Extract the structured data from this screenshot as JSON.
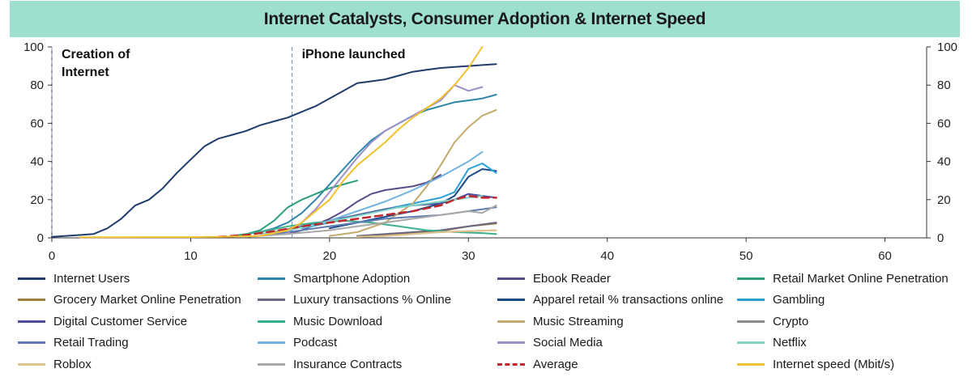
{
  "title": "Internet Catalysts, Consumer Adoption & Internet Speed",
  "chart_data": {
    "type": "line",
    "title": "Internet Catalysts, Consumer Adoption & Internet Speed",
    "xlabel": "",
    "ylabel": "",
    "xlim": [
      0,
      63
    ],
    "ylim": [
      0,
      100
    ],
    "x_ticks": [
      "0",
      "10",
      "20",
      "30",
      "40",
      "50",
      "60"
    ],
    "y_ticks_left": [
      "0",
      "20",
      "40",
      "60",
      "80",
      "100"
    ],
    "y_ticks_right": [
      "0",
      "20",
      "40",
      "60",
      "80",
      "100"
    ],
    "grid": false,
    "legend_position": "bottom",
    "annotations": [
      {
        "text": [
          "Creation of",
          "Internet"
        ],
        "x": 0
      },
      {
        "text": [
          "iPhone launched"
        ],
        "x": 17.3
      }
    ],
    "series": [
      {
        "name": "Internet Users",
        "color": "#1f3c6b",
        "dash": false,
        "points": [
          [
            0,
            0.5
          ],
          [
            1,
            1
          ],
          [
            2,
            1.5
          ],
          [
            3,
            2
          ],
          [
            4,
            5
          ],
          [
            5,
            10
          ],
          [
            6,
            17
          ],
          [
            7,
            20
          ],
          [
            8,
            26
          ],
          [
            9,
            34
          ],
          [
            10,
            41
          ],
          [
            11,
            48
          ],
          [
            12,
            52
          ],
          [
            13,
            54
          ],
          [
            14,
            56
          ],
          [
            15,
            59
          ],
          [
            16,
            61
          ],
          [
            17,
            63
          ],
          [
            18,
            66
          ],
          [
            19,
            69
          ],
          [
            20,
            73
          ],
          [
            21,
            77
          ],
          [
            22,
            81
          ],
          [
            23,
            82
          ],
          [
            24,
            83
          ],
          [
            25,
            85
          ],
          [
            26,
            87
          ],
          [
            27,
            88
          ],
          [
            28,
            89
          ],
          [
            29,
            89.5
          ],
          [
            30,
            90
          ],
          [
            31,
            90.5
          ],
          [
            32,
            91
          ]
        ]
      },
      {
        "name": "Smartphone Adoption",
        "color": "#2e86ab",
        "dash": false,
        "points": [
          [
            15,
            3
          ],
          [
            16,
            5
          ],
          [
            17,
            8
          ],
          [
            18,
            13
          ],
          [
            19,
            20
          ],
          [
            20,
            28
          ],
          [
            21,
            36
          ],
          [
            22,
            44
          ],
          [
            23,
            51
          ],
          [
            24,
            56
          ],
          [
            25,
            60
          ],
          [
            26,
            64
          ],
          [
            27,
            67
          ],
          [
            28,
            69
          ],
          [
            29,
            71
          ],
          [
            30,
            72
          ],
          [
            31,
            73
          ],
          [
            32,
            75
          ]
        ]
      },
      {
        "name": "Ebook Reader",
        "color": "#5b4a8a",
        "dash": false,
        "points": [
          [
            17,
            2
          ],
          [
            18,
            4
          ],
          [
            19,
            7
          ],
          [
            20,
            10
          ],
          [
            21,
            14
          ],
          [
            22,
            19
          ],
          [
            23,
            23
          ],
          [
            24,
            25
          ],
          [
            25,
            26
          ],
          [
            26,
            27
          ],
          [
            27,
            29
          ],
          [
            28,
            33
          ]
        ]
      },
      {
        "name": "Retail Market Online Penetration",
        "color": "#2a9d7c",
        "dash": false,
        "points": [
          [
            13,
            1
          ],
          [
            14,
            2
          ],
          [
            15,
            4
          ],
          [
            16,
            9
          ],
          [
            17,
            16
          ],
          [
            18,
            20
          ],
          [
            19,
            23
          ],
          [
            20,
            26
          ],
          [
            21,
            28
          ],
          [
            22,
            30
          ]
        ]
      },
      {
        "name": "Grocery Market Online Penetration",
        "color": "#a07c3c",
        "dash": false,
        "points": [
          [
            22,
            1
          ],
          [
            24,
            1.5
          ],
          [
            26,
            2.5
          ],
          [
            28,
            3.5
          ],
          [
            30,
            6
          ],
          [
            32,
            7.5
          ]
        ]
      },
      {
        "name": "Luxury transactions % Online",
        "color": "#6b6780",
        "dash": false,
        "points": [
          [
            22,
            1
          ],
          [
            24,
            2
          ],
          [
            26,
            3
          ],
          [
            28,
            4
          ],
          [
            30,
            6
          ],
          [
            32,
            8
          ]
        ]
      },
      {
        "name": "Apparel retail % transactions online",
        "color": "#1a4b8c",
        "dash": false,
        "points": [
          [
            20,
            5
          ],
          [
            22,
            8
          ],
          [
            24,
            11
          ],
          [
            26,
            14
          ],
          [
            28,
            18
          ],
          [
            29,
            22
          ],
          [
            30,
            32
          ],
          [
            31,
            36
          ],
          [
            32,
            35
          ]
        ]
      },
      {
        "name": "Gambling",
        "color": "#2b9fd8",
        "dash": false,
        "points": [
          [
            18,
            5
          ],
          [
            20,
            8
          ],
          [
            22,
            12
          ],
          [
            24,
            15
          ],
          [
            26,
            18
          ],
          [
            28,
            21
          ],
          [
            29,
            24
          ],
          [
            30,
            36
          ],
          [
            31,
            39
          ],
          [
            32,
            34
          ]
        ]
      },
      {
        "name": "Digital Customer Service",
        "color": "#4a4d99",
        "dash": false,
        "points": [
          [
            16,
            3
          ],
          [
            18,
            6
          ],
          [
            20,
            9
          ],
          [
            22,
            12
          ],
          [
            24,
            15
          ],
          [
            26,
            17
          ],
          [
            28,
            18
          ],
          [
            29,
            20
          ],
          [
            30,
            23
          ],
          [
            31,
            22
          ],
          [
            32,
            21
          ]
        ]
      },
      {
        "name": "Music Download",
        "color": "#3bb08f",
        "dash": false,
        "points": [
          [
            13,
            1
          ],
          [
            15,
            3
          ],
          [
            17,
            6
          ],
          [
            19,
            8
          ],
          [
            21,
            9
          ],
          [
            23,
            8
          ],
          [
            25,
            6
          ],
          [
            27,
            4
          ],
          [
            29,
            3
          ],
          [
            31,
            2.5
          ],
          [
            32,
            2
          ]
        ]
      },
      {
        "name": "Music Streaming",
        "color": "#c4aa6a",
        "dash": false,
        "points": [
          [
            20,
            1
          ],
          [
            22,
            3
          ],
          [
            24,
            8
          ],
          [
            26,
            18
          ],
          [
            27,
            27
          ],
          [
            28,
            38
          ],
          [
            29,
            50
          ],
          [
            30,
            58
          ],
          [
            31,
            64
          ],
          [
            32,
            67
          ]
        ]
      },
      {
        "name": "Crypto",
        "color": "#8a8a8a",
        "dash": false,
        "points": [
          [
            22,
            0.5
          ],
          [
            24,
            1
          ],
          [
            26,
            2
          ],
          [
            28,
            3
          ],
          [
            30,
            3.5
          ],
          [
            32,
            4
          ]
        ]
      },
      {
        "name": "Retail Trading",
        "color": "#5e7bb5",
        "dash": false,
        "points": [
          [
            16,
            2
          ],
          [
            18,
            4
          ],
          [
            20,
            6
          ],
          [
            22,
            8
          ],
          [
            24,
            10
          ],
          [
            26,
            11
          ],
          [
            28,
            12
          ],
          [
            30,
            14
          ],
          [
            32,
            16
          ]
        ]
      },
      {
        "name": "Podcast",
        "color": "#6fb3e0",
        "dash": false,
        "points": [
          [
            18,
            5
          ],
          [
            20,
            9
          ],
          [
            22,
            14
          ],
          [
            24,
            19
          ],
          [
            26,
            25
          ],
          [
            28,
            32
          ],
          [
            30,
            40
          ],
          [
            31,
            45
          ]
        ]
      },
      {
        "name": "Social Media",
        "color": "#9b91c9",
        "dash": false,
        "points": [
          [
            17,
            3
          ],
          [
            18,
            8
          ],
          [
            19,
            15
          ],
          [
            20,
            24
          ],
          [
            21,
            33
          ],
          [
            22,
            42
          ],
          [
            23,
            50
          ],
          [
            24,
            56
          ],
          [
            25,
            60
          ],
          [
            26,
            64
          ],
          [
            27,
            68
          ],
          [
            28,
            72
          ],
          [
            29,
            80
          ],
          [
            30,
            77
          ],
          [
            31,
            79
          ]
        ]
      },
      {
        "name": "Netflix",
        "color": "#7fd4c4",
        "dash": false,
        "points": [
          [
            15,
            2
          ],
          [
            17,
            4
          ],
          [
            19,
            7
          ],
          [
            21,
            10
          ],
          [
            23,
            13
          ],
          [
            25,
            16
          ],
          [
            27,
            18
          ],
          [
            29,
            20
          ],
          [
            31,
            22
          ]
        ]
      },
      {
        "name": "Roblox",
        "color": "#e0c48a",
        "dash": false,
        "points": [
          [
            22,
            0.5
          ],
          [
            24,
            1
          ],
          [
            26,
            2
          ],
          [
            28,
            3
          ],
          [
            30,
            3.5
          ],
          [
            32,
            4
          ]
        ]
      },
      {
        "name": "Insurance Contracts",
        "color": "#a8a8a8",
        "dash": false,
        "points": [
          [
            14,
            0.5
          ],
          [
            17,
            2
          ],
          [
            20,
            4
          ],
          [
            22,
            6
          ],
          [
            24,
            8
          ],
          [
            26,
            10
          ],
          [
            28,
            12
          ],
          [
            30,
            14
          ],
          [
            31,
            13
          ],
          [
            32,
            17
          ]
        ]
      },
      {
        "name": "Average",
        "color": "#c0282d",
        "dash": true,
        "points": [
          [
            12,
            0.5
          ],
          [
            14,
            1.5
          ],
          [
            16,
            3.5
          ],
          [
            18,
            6
          ],
          [
            20,
            8
          ],
          [
            22,
            10
          ],
          [
            24,
            12
          ],
          [
            26,
            14
          ],
          [
            28,
            17
          ],
          [
            29,
            20
          ],
          [
            30,
            22
          ],
          [
            31,
            21
          ],
          [
            32,
            21
          ]
        ]
      },
      {
        "name": "Internet speed (Mbit/s)",
        "color": "#f2c12e",
        "dash": false,
        "points": [
          [
            2,
            0.3
          ],
          [
            5,
            0.3
          ],
          [
            7,
            0.4
          ],
          [
            10,
            0.4
          ],
          [
            12,
            0.5
          ],
          [
            15,
            1
          ],
          [
            17,
            4
          ],
          [
            18,
            8
          ],
          [
            19,
            14
          ],
          [
            20,
            20
          ],
          [
            21,
            30
          ],
          [
            22,
            38
          ],
          [
            23,
            44
          ],
          [
            24,
            50
          ],
          [
            25,
            57
          ],
          [
            26,
            63
          ],
          [
            27,
            68
          ],
          [
            28,
            73
          ],
          [
            29,
            80
          ],
          [
            30,
            89
          ],
          [
            31,
            100
          ]
        ]
      }
    ]
  }
}
